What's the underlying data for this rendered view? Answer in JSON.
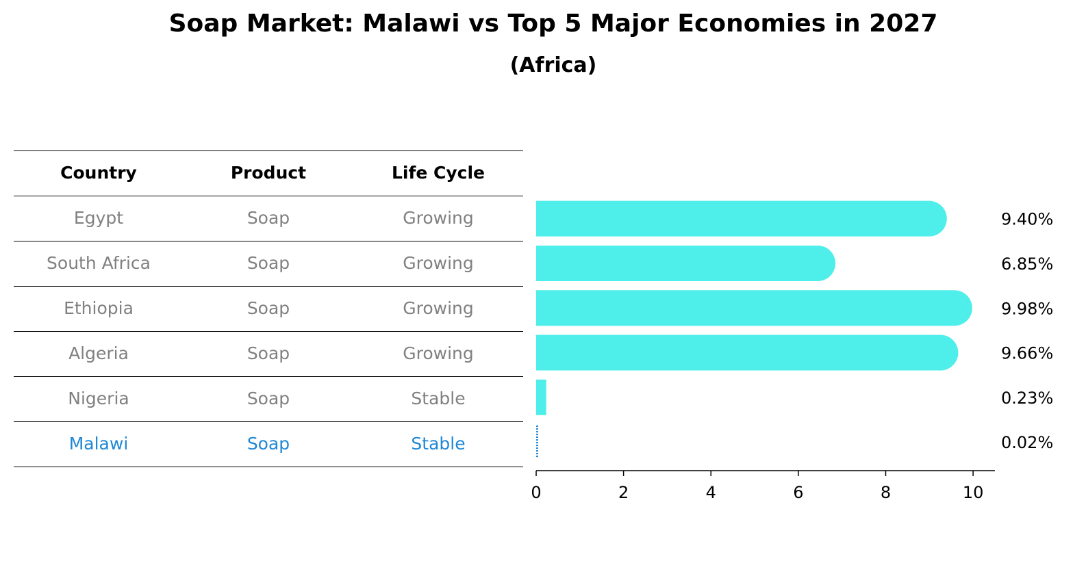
{
  "title": "Soap Market: Malawi vs Top 5 Major Economies in 2027",
  "subtitle": "(Africa)",
  "table": {
    "headers": [
      "Country",
      "Product",
      "Life Cycle"
    ],
    "rows": [
      [
        "Egypt",
        "Soap",
        "Growing"
      ],
      [
        "South Africa",
        "Soap",
        "Growing"
      ],
      [
        "Ethiopia",
        "Soap",
        "Growing"
      ],
      [
        "Algeria",
        "Soap",
        "Growing"
      ],
      [
        "Nigeria",
        "Soap",
        "Stable"
      ],
      [
        "Malawi",
        "Soap",
        "Stable"
      ]
    ],
    "highlight_row": 5
  },
  "chart_data": {
    "type": "bar",
    "orientation": "horizontal",
    "categories": [
      "Egypt",
      "South Africa",
      "Ethiopia",
      "Algeria",
      "Nigeria",
      "Malawi"
    ],
    "values": [
      9.4,
      6.85,
      9.98,
      9.66,
      0.23,
      0.02
    ],
    "value_labels": [
      "9.40%",
      "6.85%",
      "9.98%",
      "9.66%",
      "0.23%",
      "0.02%"
    ],
    "xlim": [
      0,
      10.5
    ],
    "xticks": [
      0,
      2,
      4,
      6,
      8,
      10
    ],
    "grid": false,
    "bar_color": "#4eeeea",
    "highlight_color": "#1f87d6",
    "highlight_index": 5
  }
}
